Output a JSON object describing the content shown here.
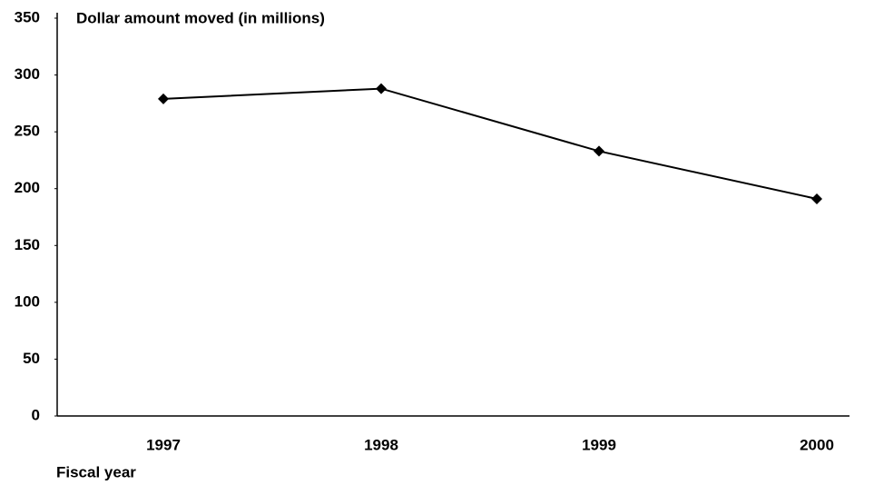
{
  "chart_data": {
    "type": "line",
    "title": "Dollar amount moved  (in millions)",
    "x_label": "Fiscal year",
    "categories": [
      "1997",
      "1998",
      "1999",
      "2000"
    ],
    "series": [
      {
        "name": "Dollar amount moved",
        "color": "#000000",
        "values": [
          279,
          288,
          233,
          191
        ]
      }
    ],
    "ylim": [
      0,
      350
    ],
    "yticks": [
      0,
      50,
      100,
      150,
      200,
      250,
      300,
      350
    ],
    "grid": false,
    "marker": "diamond"
  }
}
